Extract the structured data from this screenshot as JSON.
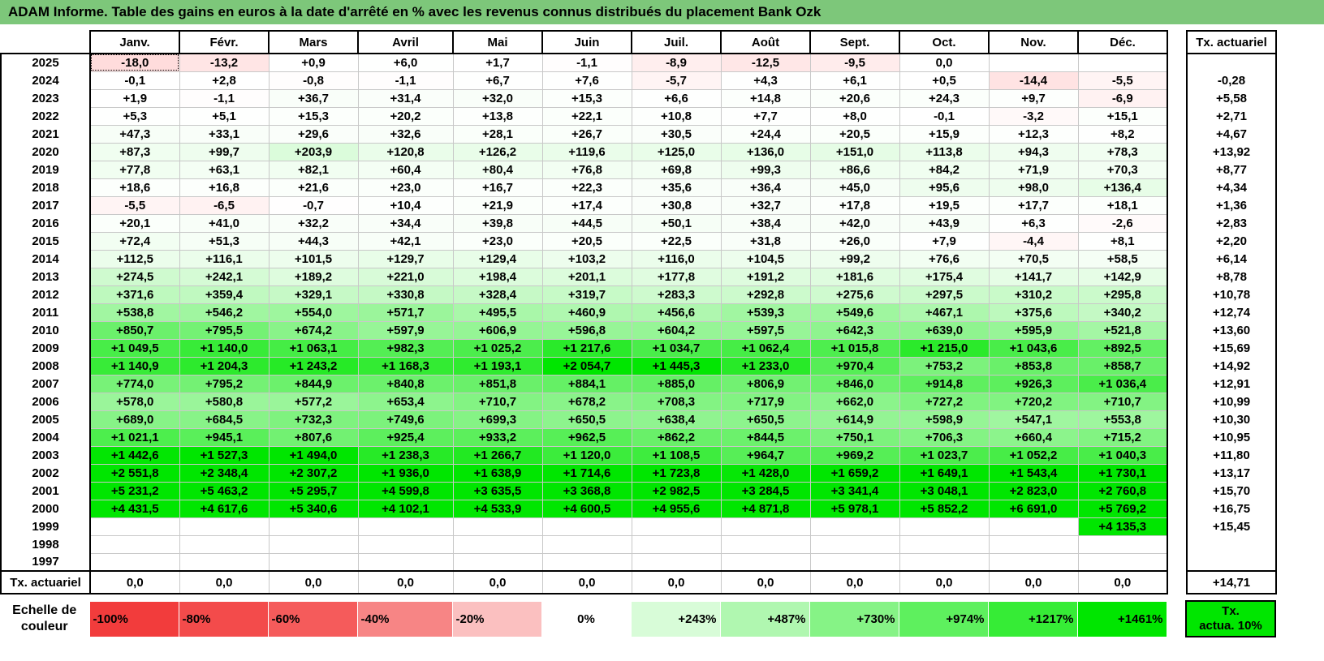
{
  "title": "ADAM Informe. Table des gains en euros à la date d'arrêté en % avec les revenus connus distribués du placement Bank Ozk",
  "months": [
    "Janv.",
    "Févr.",
    "Mars",
    "Avril",
    "Mai",
    "Juin",
    "Juil.",
    "Août",
    "Sept.",
    "Oct.",
    "Nov.",
    "Déc."
  ],
  "actu_header": "Tx. actuariel",
  "rows": [
    {
      "year": "2025",
      "values": [
        "-18,0",
        "-13,2",
        "+0,9",
        "+6,0",
        "+1,7",
        "-1,1",
        "-8,9",
        "-12,5",
        "-9,5",
        "0,0",
        "",
        ""
      ],
      "actu": ""
    },
    {
      "year": "2024",
      "values": [
        "-0,1",
        "+2,8",
        "-0,8",
        "-1,1",
        "+6,7",
        "+7,6",
        "-5,7",
        "+4,3",
        "+6,1",
        "+0,5",
        "-14,4",
        "-5,5"
      ],
      "actu": "-0,28"
    },
    {
      "year": "2023",
      "values": [
        "+1,9",
        "-1,1",
        "+36,7",
        "+31,4",
        "+32,0",
        "+15,3",
        "+6,6",
        "+14,8",
        "+20,6",
        "+24,3",
        "+9,7",
        "-6,9"
      ],
      "actu": "+5,58"
    },
    {
      "year": "2022",
      "values": [
        "+5,3",
        "+5,1",
        "+15,3",
        "+20,2",
        "+13,8",
        "+22,1",
        "+10,8",
        "+7,7",
        "+8,0",
        "-0,1",
        "-3,2",
        "+15,1"
      ],
      "actu": "+2,71"
    },
    {
      "year": "2021",
      "values": [
        "+47,3",
        "+33,1",
        "+29,6",
        "+32,6",
        "+28,1",
        "+26,7",
        "+30,5",
        "+24,4",
        "+20,5",
        "+15,9",
        "+12,3",
        "+8,2"
      ],
      "actu": "+4,67"
    },
    {
      "year": "2020",
      "values": [
        "+87,3",
        "+99,7",
        "+203,9",
        "+120,8",
        "+126,2",
        "+119,6",
        "+125,0",
        "+136,0",
        "+151,0",
        "+113,8",
        "+94,3",
        "+78,3"
      ],
      "actu": "+13,92"
    },
    {
      "year": "2019",
      "values": [
        "+77,8",
        "+63,1",
        "+82,1",
        "+60,4",
        "+80,4",
        "+76,8",
        "+69,8",
        "+99,3",
        "+86,6",
        "+84,2",
        "+71,9",
        "+70,3"
      ],
      "actu": "+8,77"
    },
    {
      "year": "2018",
      "values": [
        "+18,6",
        "+16,8",
        "+21,6",
        "+23,0",
        "+16,7",
        "+22,3",
        "+35,6",
        "+36,4",
        "+45,0",
        "+95,6",
        "+98,0",
        "+136,4"
      ],
      "actu": "+4,34"
    },
    {
      "year": "2017",
      "values": [
        "-5,5",
        "-6,5",
        "-0,7",
        "+10,4",
        "+21,9",
        "+17,4",
        "+30,8",
        "+32,7",
        "+17,8",
        "+19,5",
        "+17,7",
        "+18,1"
      ],
      "actu": "+1,36"
    },
    {
      "year": "2016",
      "values": [
        "+20,1",
        "+41,0",
        "+32,2",
        "+34,4",
        "+39,8",
        "+44,5",
        "+50,1",
        "+38,4",
        "+42,0",
        "+43,9",
        "+6,3",
        "-2,6"
      ],
      "actu": "+2,83"
    },
    {
      "year": "2015",
      "values": [
        "+72,4",
        "+51,3",
        "+44,3",
        "+42,1",
        "+23,0",
        "+20,5",
        "+22,5",
        "+31,8",
        "+26,0",
        "+7,9",
        "-4,4",
        "+8,1"
      ],
      "actu": "+2,20"
    },
    {
      "year": "2014",
      "values": [
        "+112,5",
        "+116,1",
        "+101,5",
        "+129,7",
        "+129,4",
        "+103,2",
        "+116,0",
        "+104,5",
        "+99,2",
        "+76,6",
        "+70,5",
        "+58,5"
      ],
      "actu": "+6,14"
    },
    {
      "year": "2013",
      "values": [
        "+274,5",
        "+242,1",
        "+189,2",
        "+221,0",
        "+198,4",
        "+201,1",
        "+177,8",
        "+191,2",
        "+181,6",
        "+175,4",
        "+141,7",
        "+142,9"
      ],
      "actu": "+8,78"
    },
    {
      "year": "2012",
      "values": [
        "+371,6",
        "+359,4",
        "+329,1",
        "+330,8",
        "+328,4",
        "+319,7",
        "+283,3",
        "+292,8",
        "+275,6",
        "+297,5",
        "+310,2",
        "+295,8"
      ],
      "actu": "+10,78"
    },
    {
      "year": "2011",
      "values": [
        "+538,8",
        "+546,2",
        "+554,0",
        "+571,7",
        "+495,5",
        "+460,9",
        "+456,6",
        "+539,3",
        "+549,6",
        "+467,1",
        "+375,6",
        "+340,2"
      ],
      "actu": "+12,74"
    },
    {
      "year": "2010",
      "values": [
        "+850,7",
        "+795,5",
        "+674,2",
        "+597,9",
        "+606,9",
        "+596,8",
        "+604,2",
        "+597,5",
        "+642,3",
        "+639,0",
        "+595,9",
        "+521,8"
      ],
      "actu": "+13,60"
    },
    {
      "year": "2009",
      "values": [
        "+1 049,5",
        "+1 140,0",
        "+1 063,1",
        "+982,3",
        "+1 025,2",
        "+1 217,6",
        "+1 034,7",
        "+1 062,4",
        "+1 015,8",
        "+1 215,0",
        "+1 043,6",
        "+892,5"
      ],
      "actu": "+15,69"
    },
    {
      "year": "2008",
      "values": [
        "+1 140,9",
        "+1 204,3",
        "+1 243,2",
        "+1 168,3",
        "+1 193,1",
        "+2 054,7",
        "+1 445,3",
        "+1 233,0",
        "+970,4",
        "+753,2",
        "+853,8",
        "+858,7"
      ],
      "actu": "+14,92"
    },
    {
      "year": "2007",
      "values": [
        "+774,0",
        "+795,2",
        "+844,9",
        "+840,8",
        "+851,8",
        "+884,1",
        "+885,0",
        "+806,9",
        "+846,0",
        "+914,8",
        "+926,3",
        "+1 036,4"
      ],
      "actu": "+12,91"
    },
    {
      "year": "2006",
      "values": [
        "+578,0",
        "+580,8",
        "+577,2",
        "+653,4",
        "+710,7",
        "+678,2",
        "+708,3",
        "+717,9",
        "+662,0",
        "+727,2",
        "+720,2",
        "+710,7"
      ],
      "actu": "+10,99"
    },
    {
      "year": "2005",
      "values": [
        "+689,0",
        "+684,5",
        "+732,3",
        "+749,6",
        "+699,3",
        "+650,5",
        "+638,4",
        "+650,5",
        "+614,9",
        "+598,9",
        "+547,1",
        "+553,8"
      ],
      "actu": "+10,30"
    },
    {
      "year": "2004",
      "values": [
        "+1 021,1",
        "+945,1",
        "+807,6",
        "+925,4",
        "+933,2",
        "+962,5",
        "+862,2",
        "+844,5",
        "+750,1",
        "+706,3",
        "+660,4",
        "+715,2"
      ],
      "actu": "+10,95"
    },
    {
      "year": "2003",
      "values": [
        "+1 442,6",
        "+1 527,3",
        "+1 494,0",
        "+1 238,3",
        "+1 266,7",
        "+1 120,0",
        "+1 108,5",
        "+964,7",
        "+969,2",
        "+1 023,7",
        "+1 052,2",
        "+1 040,3"
      ],
      "actu": "+11,80"
    },
    {
      "year": "2002",
      "values": [
        "+2 551,8",
        "+2 348,4",
        "+2 307,2",
        "+1 936,0",
        "+1 638,9",
        "+1 714,6",
        "+1 723,8",
        "+1 428,0",
        "+1 659,2",
        "+1 649,1",
        "+1 543,4",
        "+1 730,1"
      ],
      "actu": "+13,17"
    },
    {
      "year": "2001",
      "values": [
        "+5 231,2",
        "+5 463,2",
        "+5 295,7",
        "+4 599,8",
        "+3 635,5",
        "+3 368,8",
        "+2 982,5",
        "+3 284,5",
        "+3 341,4",
        "+3 048,1",
        "+2 823,0",
        "+2 760,8"
      ],
      "actu": "+15,70"
    },
    {
      "year": "2000",
      "values": [
        "+4 431,5",
        "+4 617,6",
        "+5 340,6",
        "+4 102,1",
        "+4 533,9",
        "+4 600,5",
        "+4 955,6",
        "+4 871,8",
        "+5 978,1",
        "+5 852,2",
        "+6 691,0",
        "+5 769,2"
      ],
      "actu": "+16,75"
    },
    {
      "year": "1999",
      "values": [
        "",
        "",
        "",
        "",
        "",
        "",
        "",
        "",
        "",
        "",
        "",
        "+4 135,3"
      ],
      "actu": "+15,45"
    },
    {
      "year": "1998",
      "values": [
        "",
        "",
        "",
        "",
        "",
        "",
        "",
        "",
        "",
        "",
        "",
        ""
      ],
      "actu": ""
    },
    {
      "year": "1997",
      "values": [
        "",
        "",
        "",
        "",
        "",
        "",
        "",
        "",
        "",
        "",
        "",
        ""
      ],
      "actu": ""
    }
  ],
  "summary": {
    "label": "Tx. actuariel",
    "values": [
      "0,0",
      "0,0",
      "0,0",
      "0,0",
      "0,0",
      "0,0",
      "0,0",
      "0,0",
      "0,0",
      "0,0",
      "0,0",
      "0,0"
    ],
    "actu": "+14,71"
  },
  "scale": {
    "label": "Echelle de couleur",
    "items": [
      {
        "text": "-100%",
        "color": "#f23c3c"
      },
      {
        "text": "-80%",
        "color": "#f34b4b"
      },
      {
        "text": "-60%",
        "color": "#f55b5b"
      },
      {
        "text": "-40%",
        "color": "#f78585"
      },
      {
        "text": "-20%",
        "color": "#fbc0c0"
      },
      {
        "text": "0%",
        "color": "#ffffff"
      },
      {
        "text": "+243%",
        "color": "#d8fcd8"
      },
      {
        "text": "+487%",
        "color": "#b0f7b0"
      },
      {
        "text": "+730%",
        "color": "#86f386"
      },
      {
        "text": "+974%",
        "color": "#5ef05e"
      },
      {
        "text": "+1217%",
        "color": "#36ec36"
      },
      {
        "text": "+1461%",
        "color": "#00e600"
      }
    ],
    "actu_line1": "Tx.",
    "actu_line2": "actua. 10%"
  },
  "colors": {
    "title_bg": "#7dc77a",
    "neg_max": "#f23c3c",
    "pos_max": "#00e600"
  }
}
